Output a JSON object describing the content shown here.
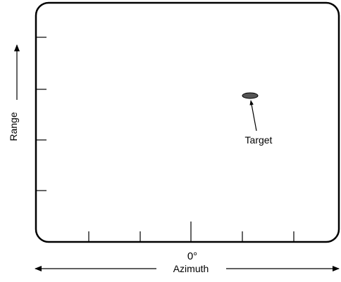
{
  "diagram": {
    "target_label": "Target",
    "center_label": "0°",
    "x_axis_label": "Azimuth",
    "y_axis_label": "Range",
    "colors": {
      "line": "#000000",
      "target": "#555555",
      "background": "#ffffff"
    }
  }
}
